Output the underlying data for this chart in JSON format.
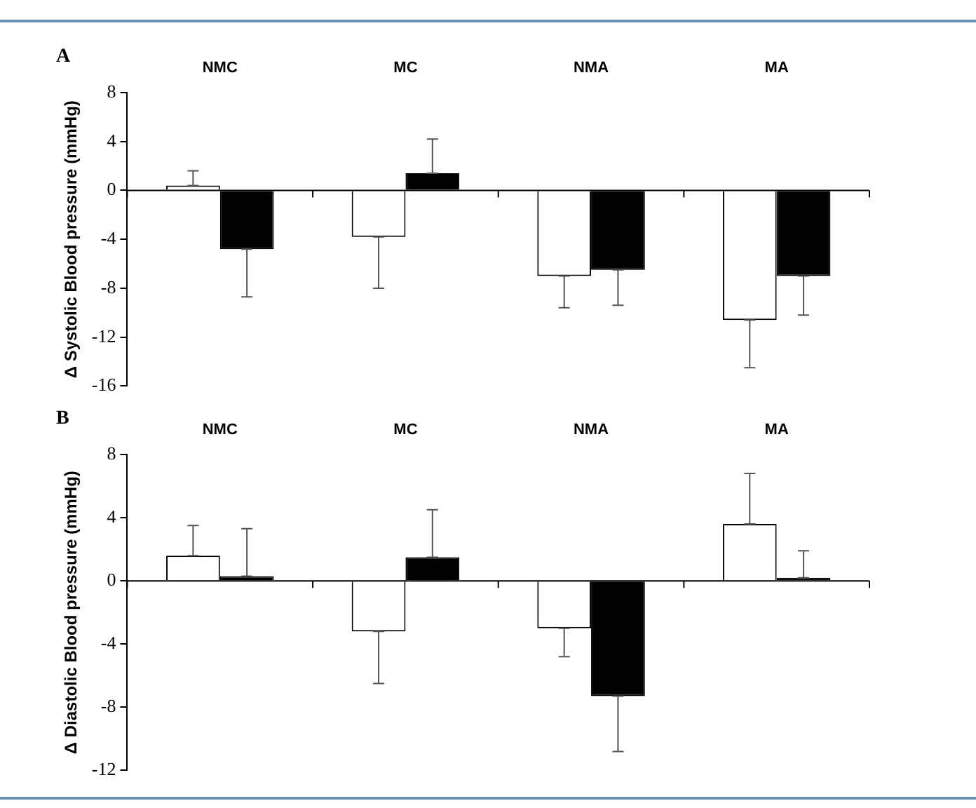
{
  "chart_data": [
    {
      "type": "bar",
      "title": "A",
      "ylabel": "Δ Systolic Blood pressure (mmHg)",
      "categories": [
        "NMC",
        "MC",
        "NMA",
        "MA"
      ],
      "series": [
        {
          "color": "#ffffff",
          "values": [
            0.4,
            -3.8,
            -7.0,
            -10.6
          ],
          "errors": [
            [
              0.4,
              1.6
            ],
            [
              -8.0,
              -3.8
            ],
            [
              -9.6,
              -7.0
            ],
            [
              -14.5,
              -10.6
            ]
          ]
        },
        {
          "color": "#000000",
          "values": [
            -4.8,
            1.4,
            -6.5,
            -7.0
          ],
          "errors": [
            [
              -8.7,
              -4.8
            ],
            [
              1.4,
              4.2
            ],
            [
              -9.4,
              -6.5
            ],
            [
              -10.2,
              -7.0
            ]
          ]
        }
      ],
      "ylim": [
        -16,
        8
      ],
      "yticks": [
        -16,
        -12,
        -8,
        -4,
        0,
        4,
        8
      ]
    },
    {
      "type": "bar",
      "title": "B",
      "ylabel": "Δ Diastolic Blood pressure (mmHg)",
      "categories": [
        "NMC",
        "MC",
        "NMA",
        "MA"
      ],
      "series": [
        {
          "color": "#ffffff",
          "values": [
            1.6,
            -3.2,
            -3.0,
            3.6
          ],
          "errors": [
            [
              1.6,
              3.5
            ],
            [
              -6.5,
              -3.2
            ],
            [
              -4.8,
              -3.0
            ],
            [
              3.6,
              6.8
            ]
          ]
        },
        {
          "color": "#000000",
          "values": [
            0.3,
            1.5,
            -7.3,
            0.2
          ],
          "errors": [
            [
              0.3,
              3.3
            ],
            [
              1.5,
              4.5
            ],
            [
              -10.8,
              -7.3
            ],
            [
              0.2,
              1.9
            ]
          ]
        }
      ],
      "ylim": [
        -12,
        8
      ],
      "yticks": [
        -12,
        -8,
        -4,
        0,
        4,
        8
      ]
    }
  ]
}
